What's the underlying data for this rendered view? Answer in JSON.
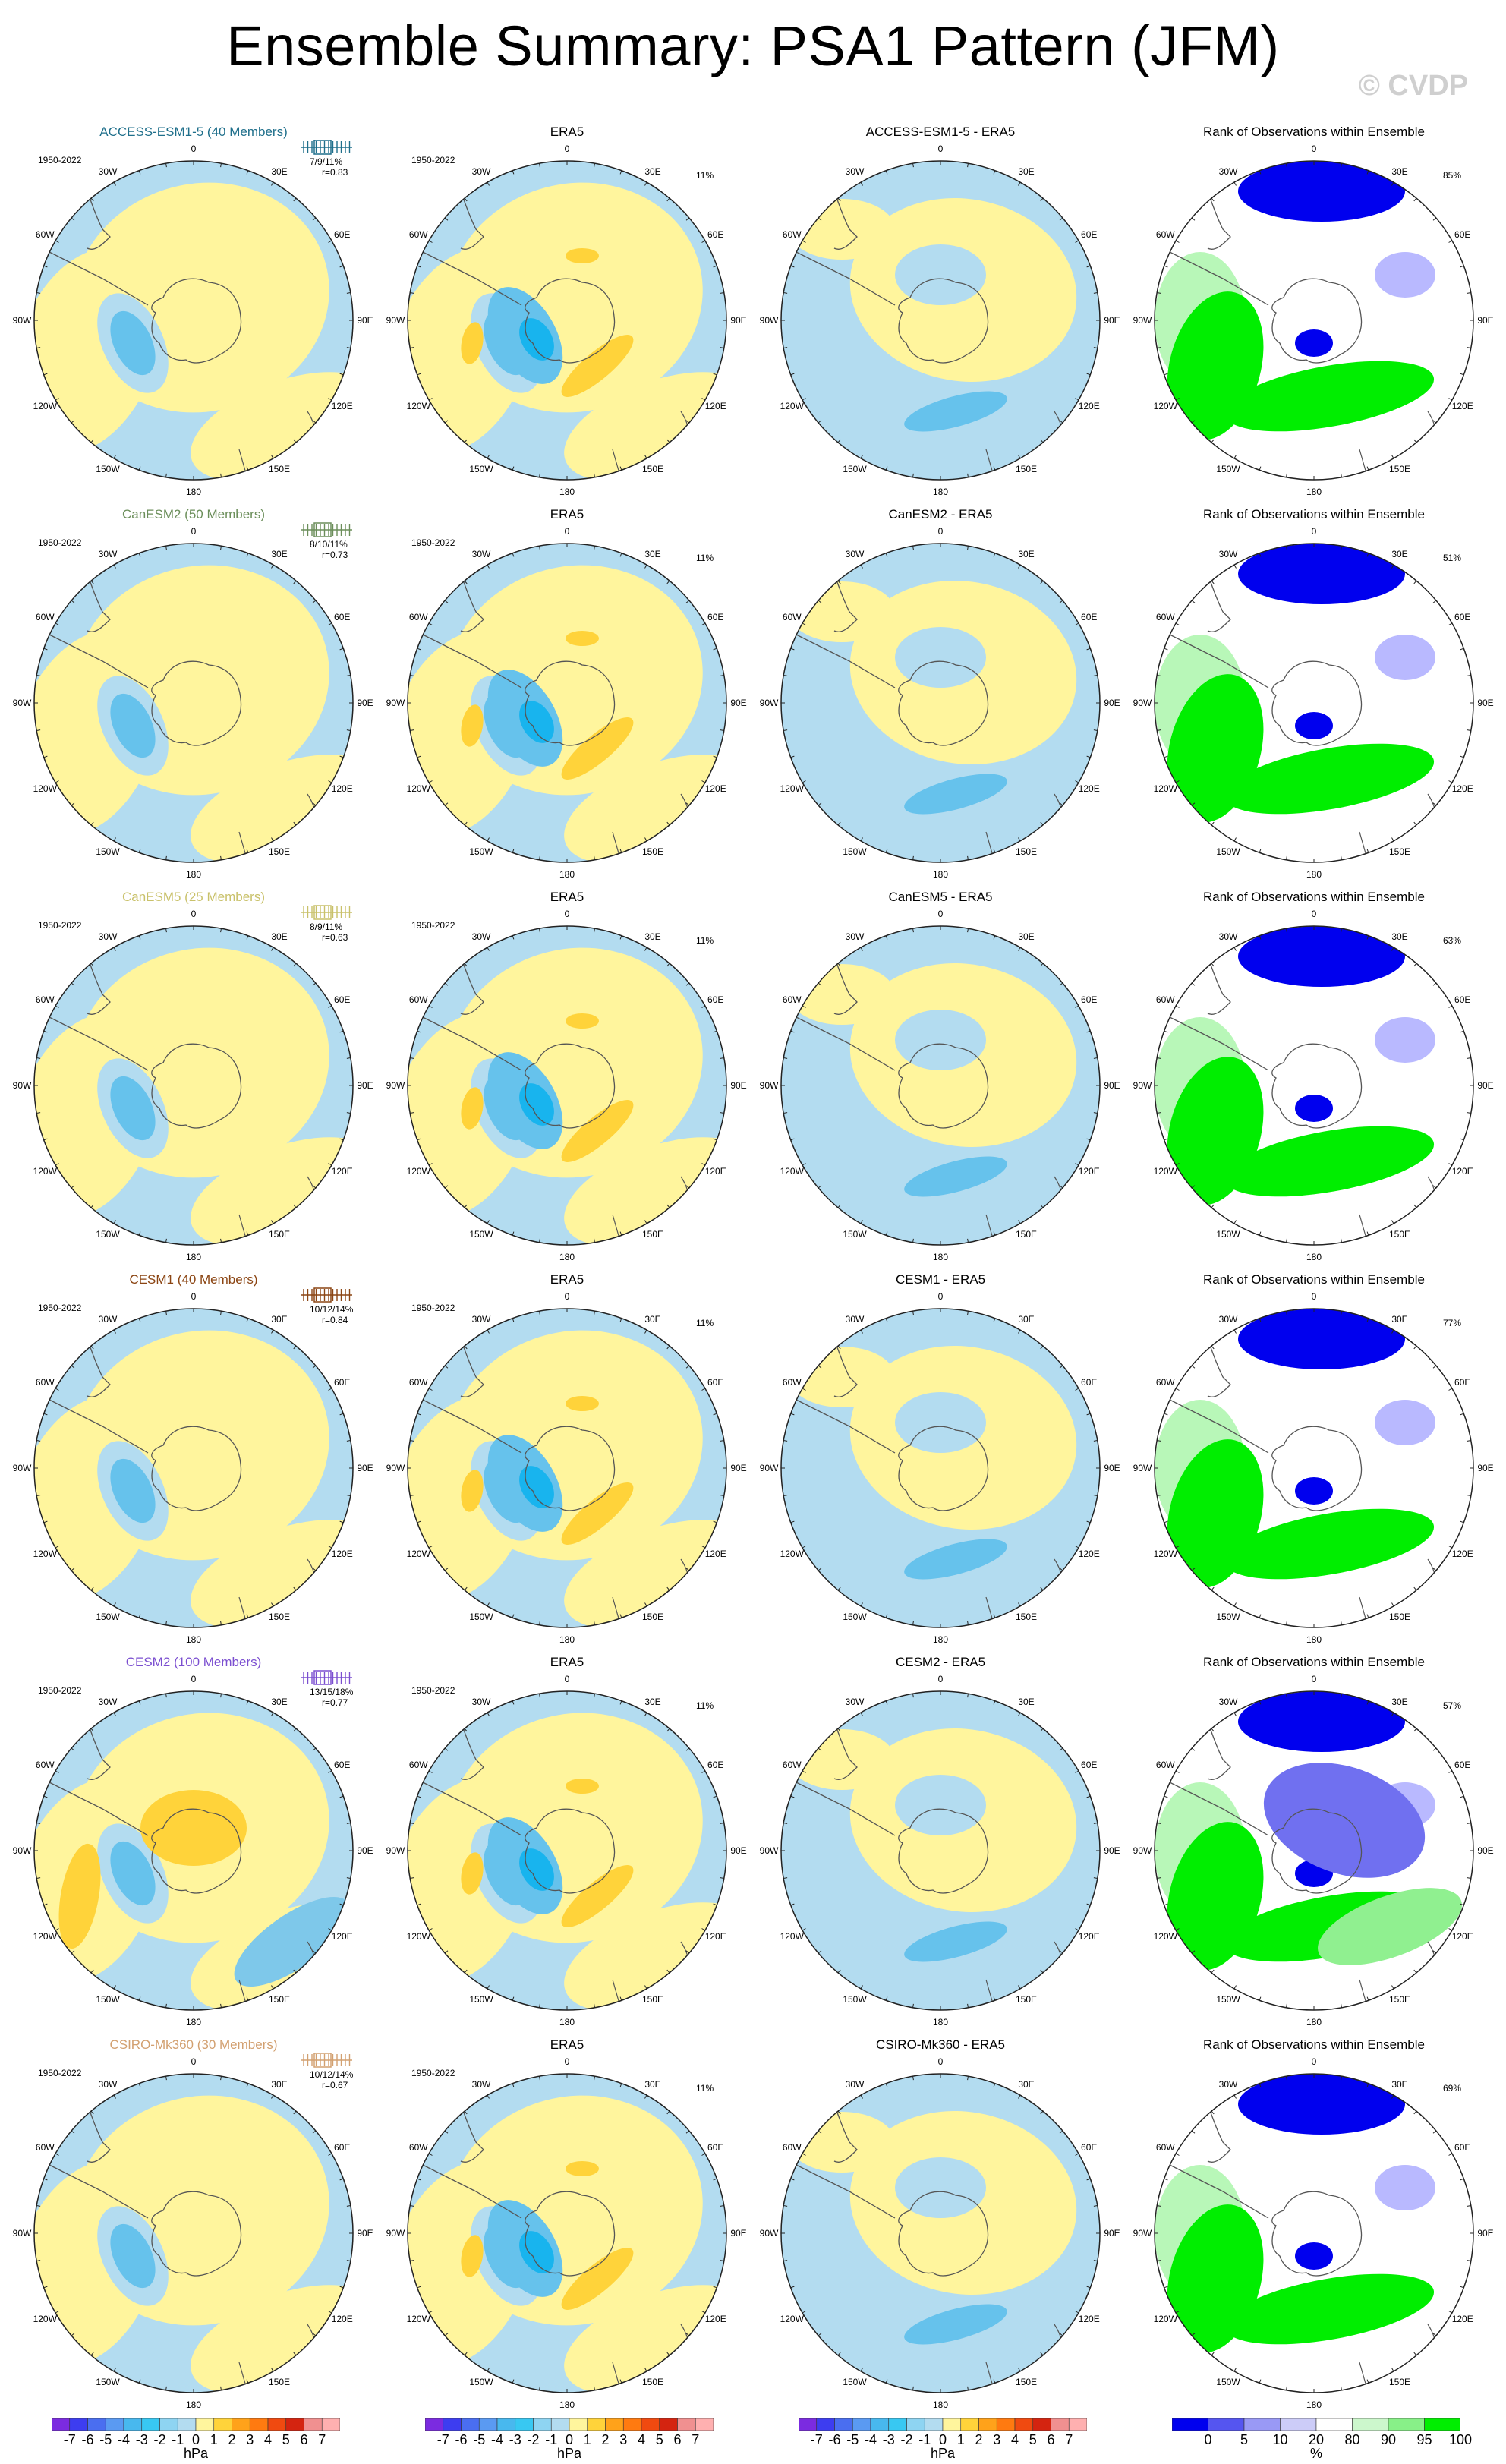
{
  "title": "Ensemble Summary: PSA1 Pattern (JFM)",
  "watermark": "© CVDP",
  "obs_label": "ERA5",
  "rank_title": "Rank of Observations within Ensemble",
  "period": "1950-2022",
  "era5_pct": "11%",
  "longitude_labels": [
    "0",
    "30E",
    "60E",
    "90E",
    "120E",
    "150E",
    "180",
    "150W",
    "120W",
    "90W",
    "60W",
    "30W"
  ],
  "colors": {
    "pos": "#fff59d",
    "neg": "#b3dcf0",
    "pos2": "#ffd33a",
    "neg2": "#66c2ec",
    "neg3": "#18b4ee",
    "rank_hi": "#00ee00",
    "rank_mid": "#b8f7b8",
    "rank_lo": "#0000ee",
    "rank_lomid": "#b9b9ff"
  },
  "rows": [
    {
      "model": "ACCESS-ESM1-5 (40 Members)",
      "model_color": "#1f6f8b",
      "diff_title": "ACCESS-ESM1-5 - ERA5",
      "stats": "7/9/11%",
      "r": "r=0.83",
      "rank_pct": "85%"
    },
    {
      "model": "CanESM2 (50 Members)",
      "model_color": "#6b8e5a",
      "diff_title": "CanESM2 - ERA5",
      "stats": "8/10/11%",
      "r": "r=0.73",
      "rank_pct": "51%"
    },
    {
      "model": "CanESM5 (25 Members)",
      "model_color": "#c9c16a",
      "diff_title": "CanESM5 - ERA5",
      "stats": "8/9/11%",
      "r": "r=0.63",
      "rank_pct": "63%"
    },
    {
      "model": "CESM1 (40 Members)",
      "model_color": "#8b4513",
      "diff_title": "CESM1 - ERA5",
      "stats": "10/12/14%",
      "r": "r=0.84",
      "rank_pct": "77%"
    },
    {
      "model": "CESM2 (100 Members)",
      "model_color": "#7b4fd0",
      "diff_title": "CESM2 - ERA5",
      "stats": "13/15/18%",
      "r": "r=0.77",
      "rank_pct": "57%"
    },
    {
      "model": "CSIRO-Mk360 (30 Members)",
      "model_color": "#d2a070",
      "diff_title": "CSIRO-Mk360 - ERA5",
      "stats": "10/12/14%",
      "r": "r=0.67",
      "rank_pct": "69%"
    }
  ],
  "colorbar": {
    "ticks": [
      "-7",
      "-6",
      "-5",
      "-4",
      "-3",
      "-2",
      "-1",
      "0",
      "1",
      "2",
      "3",
      "4",
      "5",
      "6",
      "7"
    ],
    "unit": "hPa",
    "colors": [
      "#7b2be0",
      "#3d3df0",
      "#4a6ef0",
      "#5a9af2",
      "#48b8ee",
      "#38c8f2",
      "#8ed4f2",
      "#b3dcf0",
      "#fff59d",
      "#ffd33a",
      "#ffa21a",
      "#ff7a10",
      "#f04a10",
      "#d42410",
      "#f09090",
      "#ffb0b0"
    ]
  },
  "rank_colorbar": {
    "ticks": [
      "0",
      "5",
      "10",
      "20",
      "80",
      "90",
      "95",
      "100"
    ],
    "unit": "%",
    "colors": [
      "#0000ee",
      "#5555f0",
      "#9999f5",
      "#ccccf8",
      "#ffffff",
      "#ccf7cc",
      "#88f088",
      "#00ee00"
    ]
  }
}
